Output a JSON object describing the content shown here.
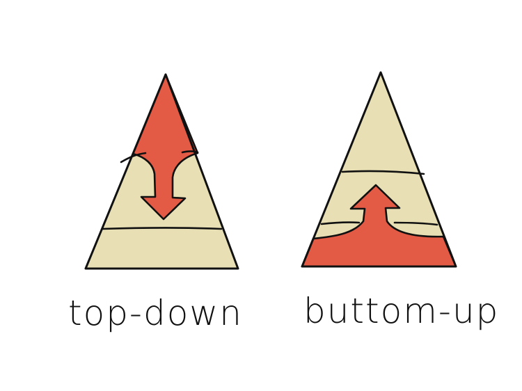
{
  "colors": {
    "pyramid_fill": "#e8dfb4",
    "arrow_fill": "#e35a45",
    "outline": "#111111",
    "background": "#ffffff"
  },
  "diagrams": [
    {
      "caption": "top-down",
      "arrow_direction": "down",
      "icon": "down-arrow-icon"
    },
    {
      "caption": "buttom-up",
      "arrow_direction": "up",
      "icon": "up-arrow-icon"
    }
  ]
}
